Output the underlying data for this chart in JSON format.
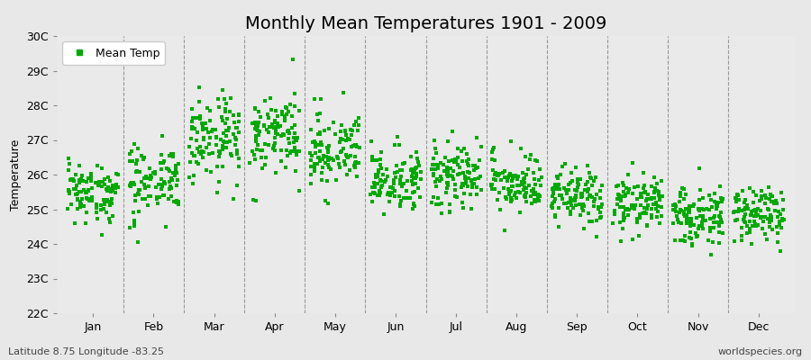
{
  "title": "Monthly Mean Temperatures 1901 - 2009",
  "ylabel": "Temperature",
  "subtitle_left": "Latitude 8.75 Longitude -83.25",
  "subtitle_right": "worldspecies.org",
  "ylim": [
    22,
    30
  ],
  "yticks": [
    22,
    23,
    24,
    25,
    26,
    27,
    28,
    29,
    30
  ],
  "ytick_labels": [
    "22C",
    "23C",
    "24C",
    "25C",
    "26C",
    "27C",
    "28C",
    "29C",
    "30C"
  ],
  "months": [
    "Jan",
    "Feb",
    "Mar",
    "Apr",
    "May",
    "Jun",
    "Jul",
    "Aug",
    "Sep",
    "Oct",
    "Nov",
    "Dec"
  ],
  "month_means": [
    25.5,
    25.85,
    27.1,
    27.2,
    26.65,
    25.85,
    26.05,
    25.7,
    25.35,
    25.2,
    24.85,
    24.85
  ],
  "month_stds": [
    0.38,
    0.52,
    0.62,
    0.55,
    0.52,
    0.42,
    0.48,
    0.42,
    0.38,
    0.38,
    0.38,
    0.38
  ],
  "dot_color": "#00aa00",
  "dot_size": 6,
  "background_color": "#e8e8e8",
  "plot_bg_color": "#eaeaea",
  "grid_color": "#777777",
  "n_years": 109,
  "seed": 12345,
  "title_fontsize": 14,
  "axis_label_fontsize": 9,
  "tick_fontsize": 9,
  "legend_fontsize": 9
}
